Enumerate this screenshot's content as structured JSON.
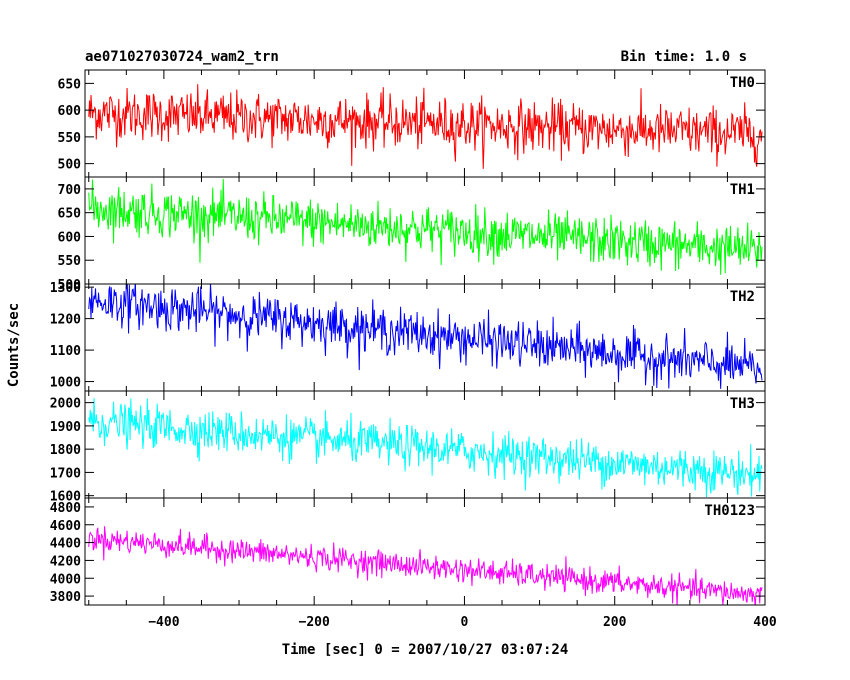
{
  "header": {
    "title": "ae071027030724_wam2_trn",
    "bin_time": "Bin time: 1.0 s"
  },
  "chart_data": {
    "type": "line",
    "title": "ae071027030724_wam2_trn",
    "subtitle": "Bin time: 1.0 s",
    "xlabel": "Time [sec] 0 = 2007/10/27 03:07:24",
    "ylabel": "Counts/sec",
    "xlim": [
      -505,
      400
    ],
    "x_ticks": [
      -400,
      -200,
      0,
      200,
      400
    ],
    "x_tick_labels": [
      "−400",
      "−200",
      "0",
      "200",
      "400"
    ],
    "bin_time_s": 1.0,
    "grid": false,
    "panels": [
      {
        "name": "TH0",
        "color": "#ff0000",
        "ylim": [
          475,
          675
        ],
        "y_ticks": [
          500,
          550,
          600,
          650
        ],
        "trend_start": 595,
        "trend_end": 555,
        "noise_sigma": 24
      },
      {
        "name": "TH1",
        "color": "#00ff00",
        "ylim": [
          500,
          725
        ],
        "y_ticks": [
          500,
          550,
          600,
          650,
          700
        ],
        "trend_start": 660,
        "trend_end": 570,
        "noise_sigma": 25
      },
      {
        "name": "TH2",
        "color": "#0000ff",
        "ylim": [
          970,
          1310
        ],
        "y_ticks": [
          1000,
          1100,
          1200,
          1300
        ],
        "trend_start": 1260,
        "trend_end": 1040,
        "noise_sigma": 36
      },
      {
        "name": "TH3",
        "color": "#00ffff",
        "ylim": [
          1590,
          2050
        ],
        "y_ticks": [
          1600,
          1700,
          1800,
          1900,
          2000
        ],
        "trend_start": 1920,
        "trend_end": 1690,
        "noise_sigma": 45
      },
      {
        "name": "TH0123",
        "color": "#ff00ff",
        "ylim": [
          3700,
          4900
        ],
        "y_ticks": [
          3800,
          4000,
          4200,
          4400,
          4600,
          4800
        ],
        "trend_start": 4450,
        "trend_end": 3810,
        "noise_sigma": 70
      }
    ]
  }
}
